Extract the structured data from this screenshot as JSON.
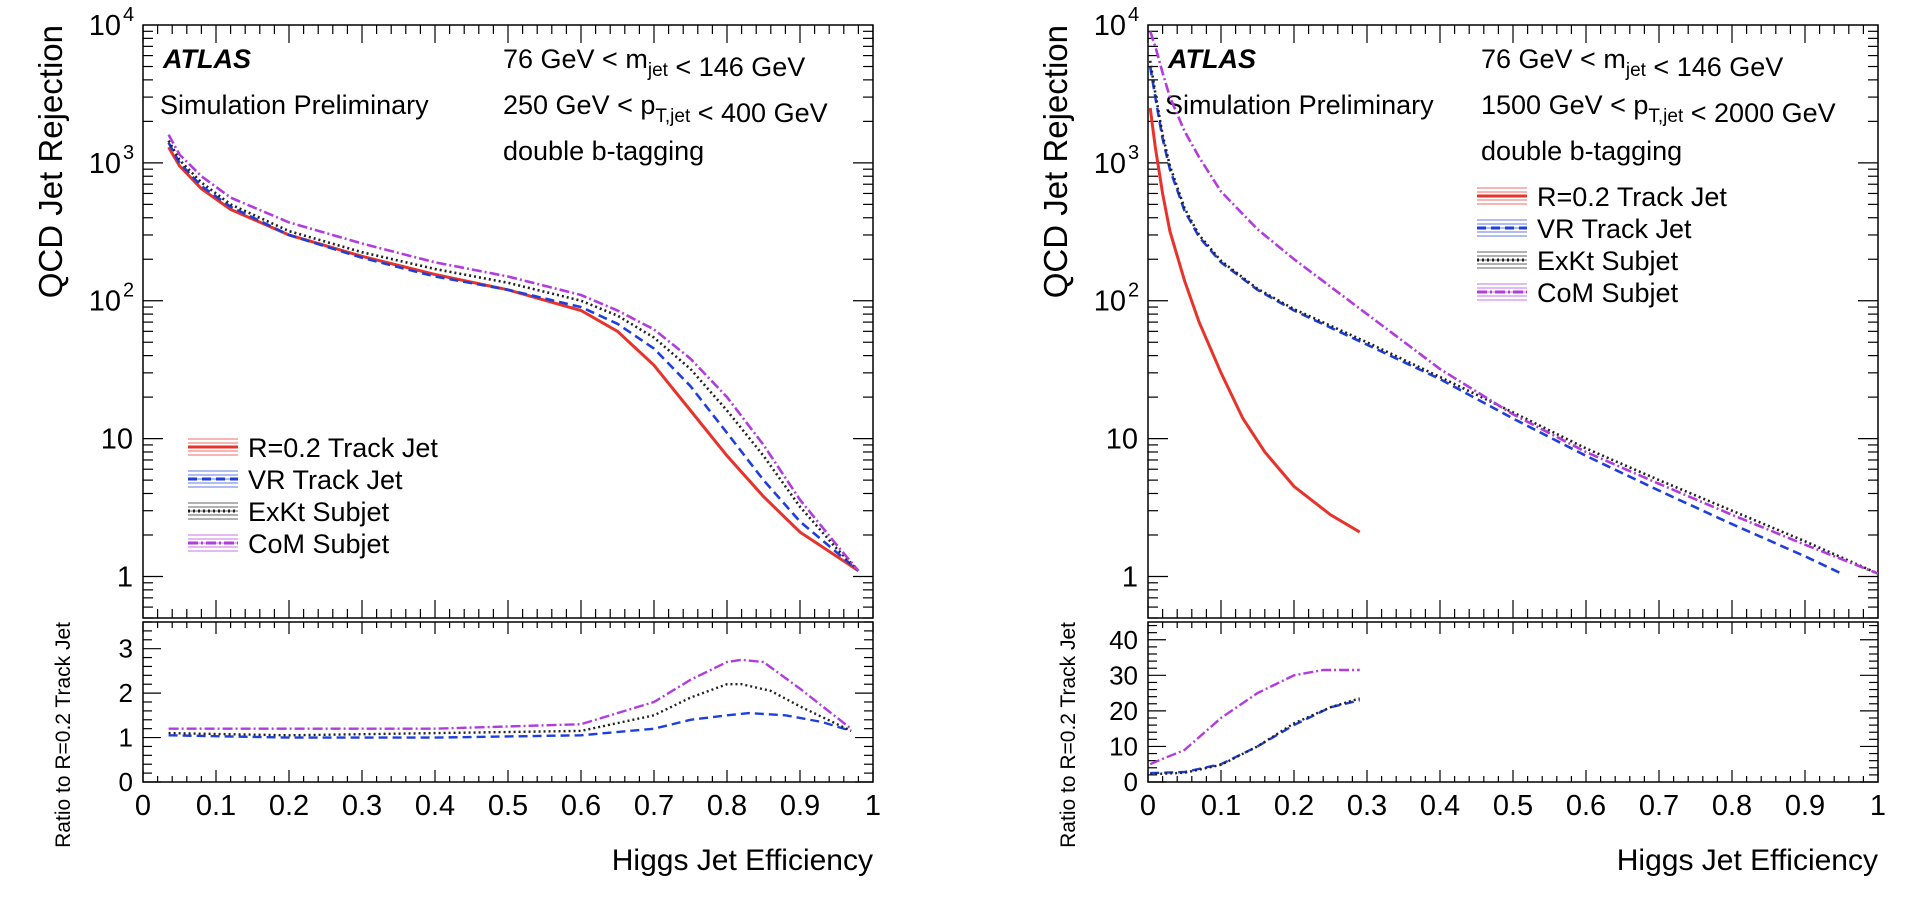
{
  "chart_data": [
    {
      "type": "line",
      "panel": "left",
      "atlas_label": "ATLAS",
      "sublabel": "Simulation Preliminary",
      "annotations": [
        "76 GeV < m_jet < 146 GeV",
        "250 GeV < p_T,jet < 400 GeV",
        "double b-tagging"
      ],
      "xlabel": "Higgs Jet Efficiency",
      "ylabel": "QCD Jet Rejection",
      "ratio_ylabel": "Ratio to R=0.2 Track Jet",
      "xlim": [
        0,
        1
      ],
      "ylim": [
        0.5,
        10000
      ],
      "yscale": "log",
      "ratio_ylim": [
        0,
        3.6
      ],
      "x_ticks": [
        "0",
        "0.1",
        "0.2",
        "0.3",
        "0.4",
        "0.5",
        "0.6",
        "0.7",
        "0.8",
        "0.9",
        "1"
      ],
      "y_ticks": [
        {
          "v": 1,
          "base": "1",
          "exp": ""
        },
        {
          "v": 10,
          "base": "10",
          "exp": ""
        },
        {
          "v": 100,
          "base": "10",
          "exp": "2"
        },
        {
          "v": 1000,
          "base": "10",
          "exp": "3"
        },
        {
          "v": 10000,
          "base": "10",
          "exp": "4"
        }
      ],
      "ratio_y_ticks": [
        0,
        1,
        2,
        3
      ],
      "legend_position": "bottom-left",
      "series": [
        {
          "name": "R=0.2 Track Jet",
          "color": "#e8332a",
          "dash": "",
          "x": [
            0.035,
            0.05,
            0.08,
            0.12,
            0.2,
            0.3,
            0.4,
            0.5,
            0.6,
            0.65,
            0.7,
            0.75,
            0.8,
            0.85,
            0.9,
            0.95,
            0.98
          ],
          "y": [
            1300,
            950,
            650,
            460,
            300,
            210,
            155,
            120,
            85,
            60,
            34,
            16,
            7.5,
            3.8,
            2.1,
            1.4,
            1.1
          ],
          "ratio_x": [],
          "ratio_y": []
        },
        {
          "name": "VR Track Jet",
          "color": "#1f3fdc",
          "dash": "9,5",
          "x": [
            0.035,
            0.05,
            0.08,
            0.12,
            0.2,
            0.3,
            0.4,
            0.5,
            0.6,
            0.65,
            0.7,
            0.75,
            0.8,
            0.85,
            0.9,
            0.95,
            0.98
          ],
          "y": [
            1400,
            1000,
            680,
            480,
            300,
            205,
            150,
            120,
            90,
            68,
            45,
            24,
            11,
            5,
            2.5,
            1.5,
            1.1
          ],
          "ratio_x": [
            0.035,
            0.2,
            0.4,
            0.6,
            0.7,
            0.75,
            0.8,
            0.83,
            0.88,
            0.93,
            0.97
          ],
          "ratio_y": [
            1.05,
            1.0,
            1.0,
            1.05,
            1.2,
            1.4,
            1.5,
            1.55,
            1.5,
            1.35,
            1.15
          ]
        },
        {
          "name": "ExKt Subjet",
          "color": "#222222",
          "dash": "2,3",
          "x": [
            0.035,
            0.05,
            0.08,
            0.12,
            0.2,
            0.3,
            0.4,
            0.5,
            0.6,
            0.65,
            0.7,
            0.75,
            0.8,
            0.85,
            0.9,
            0.95,
            0.98
          ],
          "y": [
            1450,
            1050,
            720,
            500,
            320,
            225,
            170,
            135,
            100,
            78,
            54,
            32,
            16,
            7.5,
            3.2,
            1.6,
            1.1
          ],
          "ratio_x": [
            0.035,
            0.2,
            0.4,
            0.6,
            0.7,
            0.75,
            0.8,
            0.82,
            0.86,
            0.9,
            0.97
          ],
          "ratio_y": [
            1.1,
            1.05,
            1.1,
            1.15,
            1.5,
            1.9,
            2.2,
            2.2,
            2.05,
            1.7,
            1.15
          ]
        },
        {
          "name": "CoM Subjet",
          "color": "#b23cdd",
          "dash": "10,3,2,3",
          "x": [
            0.035,
            0.05,
            0.08,
            0.12,
            0.2,
            0.3,
            0.4,
            0.5,
            0.6,
            0.65,
            0.7,
            0.75,
            0.8,
            0.85,
            0.9,
            0.95,
            0.98
          ],
          "y": [
            1600,
            1150,
            800,
            560,
            370,
            260,
            190,
            150,
            110,
            85,
            62,
            38,
            20,
            9,
            3.6,
            1.7,
            1.1
          ],
          "ratio_x": [
            0.035,
            0.2,
            0.4,
            0.6,
            0.7,
            0.75,
            0.8,
            0.82,
            0.85,
            0.9,
            0.97
          ],
          "ratio_y": [
            1.2,
            1.2,
            1.2,
            1.3,
            1.8,
            2.3,
            2.7,
            2.75,
            2.7,
            2.1,
            1.2
          ]
        }
      ]
    },
    {
      "type": "line",
      "panel": "right",
      "atlas_label": "ATLAS",
      "sublabel": "Simulation Preliminary",
      "annotations": [
        "76 GeV < m_jet < 146 GeV",
        "1500 GeV < p_T,jet < 2000 GeV",
        "double b-tagging"
      ],
      "xlabel": "Higgs Jet Efficiency",
      "ylabel": "QCD Jet Rejection",
      "ratio_ylabel": "Ratio to R=0.2 Track Jet",
      "xlim": [
        0,
        1
      ],
      "ylim": [
        0.5,
        10000
      ],
      "yscale": "log",
      "ratio_ylim": [
        0,
        45
      ],
      "x_ticks": [
        "0",
        "0.1",
        "0.2",
        "0.3",
        "0.4",
        "0.5",
        "0.6",
        "0.7",
        "0.8",
        "0.9",
        "1"
      ],
      "y_ticks": [
        {
          "v": 1,
          "base": "1",
          "exp": ""
        },
        {
          "v": 10,
          "base": "10",
          "exp": ""
        },
        {
          "v": 100,
          "base": "10",
          "exp": "2"
        },
        {
          "v": 1000,
          "base": "10",
          "exp": "3"
        },
        {
          "v": 10000,
          "base": "10",
          "exp": "4"
        }
      ],
      "ratio_y_ticks": [
        0,
        10,
        20,
        30,
        40
      ],
      "legend_position": "top-right",
      "series": [
        {
          "name": "R=0.2 Track Jet",
          "color": "#e8332a",
          "dash": "",
          "x": [
            0.003,
            0.01,
            0.02,
            0.03,
            0.05,
            0.07,
            0.1,
            0.13,
            0.16,
            0.2,
            0.25,
            0.29
          ],
          "y": [
            2500,
            1300,
            600,
            320,
            140,
            70,
            30,
            14,
            8,
            4.5,
            2.8,
            2.1
          ],
          "ratio_x": [],
          "ratio_y": []
        },
        {
          "name": "VR Track Jet",
          "color": "#1f3fdc",
          "dash": "9,5",
          "x": [
            0.003,
            0.01,
            0.02,
            0.03,
            0.05,
            0.07,
            0.1,
            0.15,
            0.2,
            0.3,
            0.4,
            0.5,
            0.6,
            0.7,
            0.8,
            0.9,
            0.95
          ],
          "y": [
            5000,
            3000,
            1500,
            900,
            450,
            290,
            190,
            120,
            85,
            48,
            27,
            14,
            7.5,
            4.2,
            2.4,
            1.4,
            1.05
          ],
          "ratio_x": [
            0.003,
            0.05,
            0.1,
            0.15,
            0.2,
            0.25,
            0.29
          ],
          "ratio_y": [
            2.5,
            2.8,
            5,
            10,
            16,
            21,
            23
          ]
        },
        {
          "name": "ExKt Subjet",
          "color": "#222222",
          "dash": "2,3",
          "x": [
            0.003,
            0.01,
            0.02,
            0.03,
            0.05,
            0.07,
            0.1,
            0.15,
            0.2,
            0.3,
            0.4,
            0.5,
            0.6,
            0.7,
            0.8,
            0.9,
            1.0
          ],
          "y": [
            5500,
            3200,
            1600,
            950,
            470,
            300,
            195,
            122,
            87,
            50,
            28,
            15.5,
            8.5,
            5,
            3,
            1.8,
            1.05
          ],
          "ratio_x": [
            0.003,
            0.05,
            0.1,
            0.15,
            0.2,
            0.25,
            0.29
          ],
          "ratio_y": [
            2.2,
            2.6,
            4.8,
            10,
            16.5,
            21,
            23.5
          ]
        },
        {
          "name": "CoM Subjet",
          "color": "#b23cdd",
          "dash": "10,3,2,3",
          "x": [
            0.003,
            0.01,
            0.02,
            0.03,
            0.05,
            0.07,
            0.1,
            0.15,
            0.2,
            0.3,
            0.4,
            0.5,
            0.6,
            0.7,
            0.8,
            0.9,
            1.0
          ],
          "y": [
            9000,
            7000,
            4500,
            3000,
            1700,
            1100,
            620,
            330,
            200,
            80,
            32,
            15,
            8,
            4.7,
            2.8,
            1.7,
            1.05
          ],
          "ratio_x": [
            0.003,
            0.02,
            0.05,
            0.1,
            0.15,
            0.2,
            0.24,
            0.29
          ],
          "ratio_y": [
            5,
            6.5,
            9,
            18,
            25,
            30,
            31.5,
            31.5
          ]
        }
      ]
    }
  ]
}
